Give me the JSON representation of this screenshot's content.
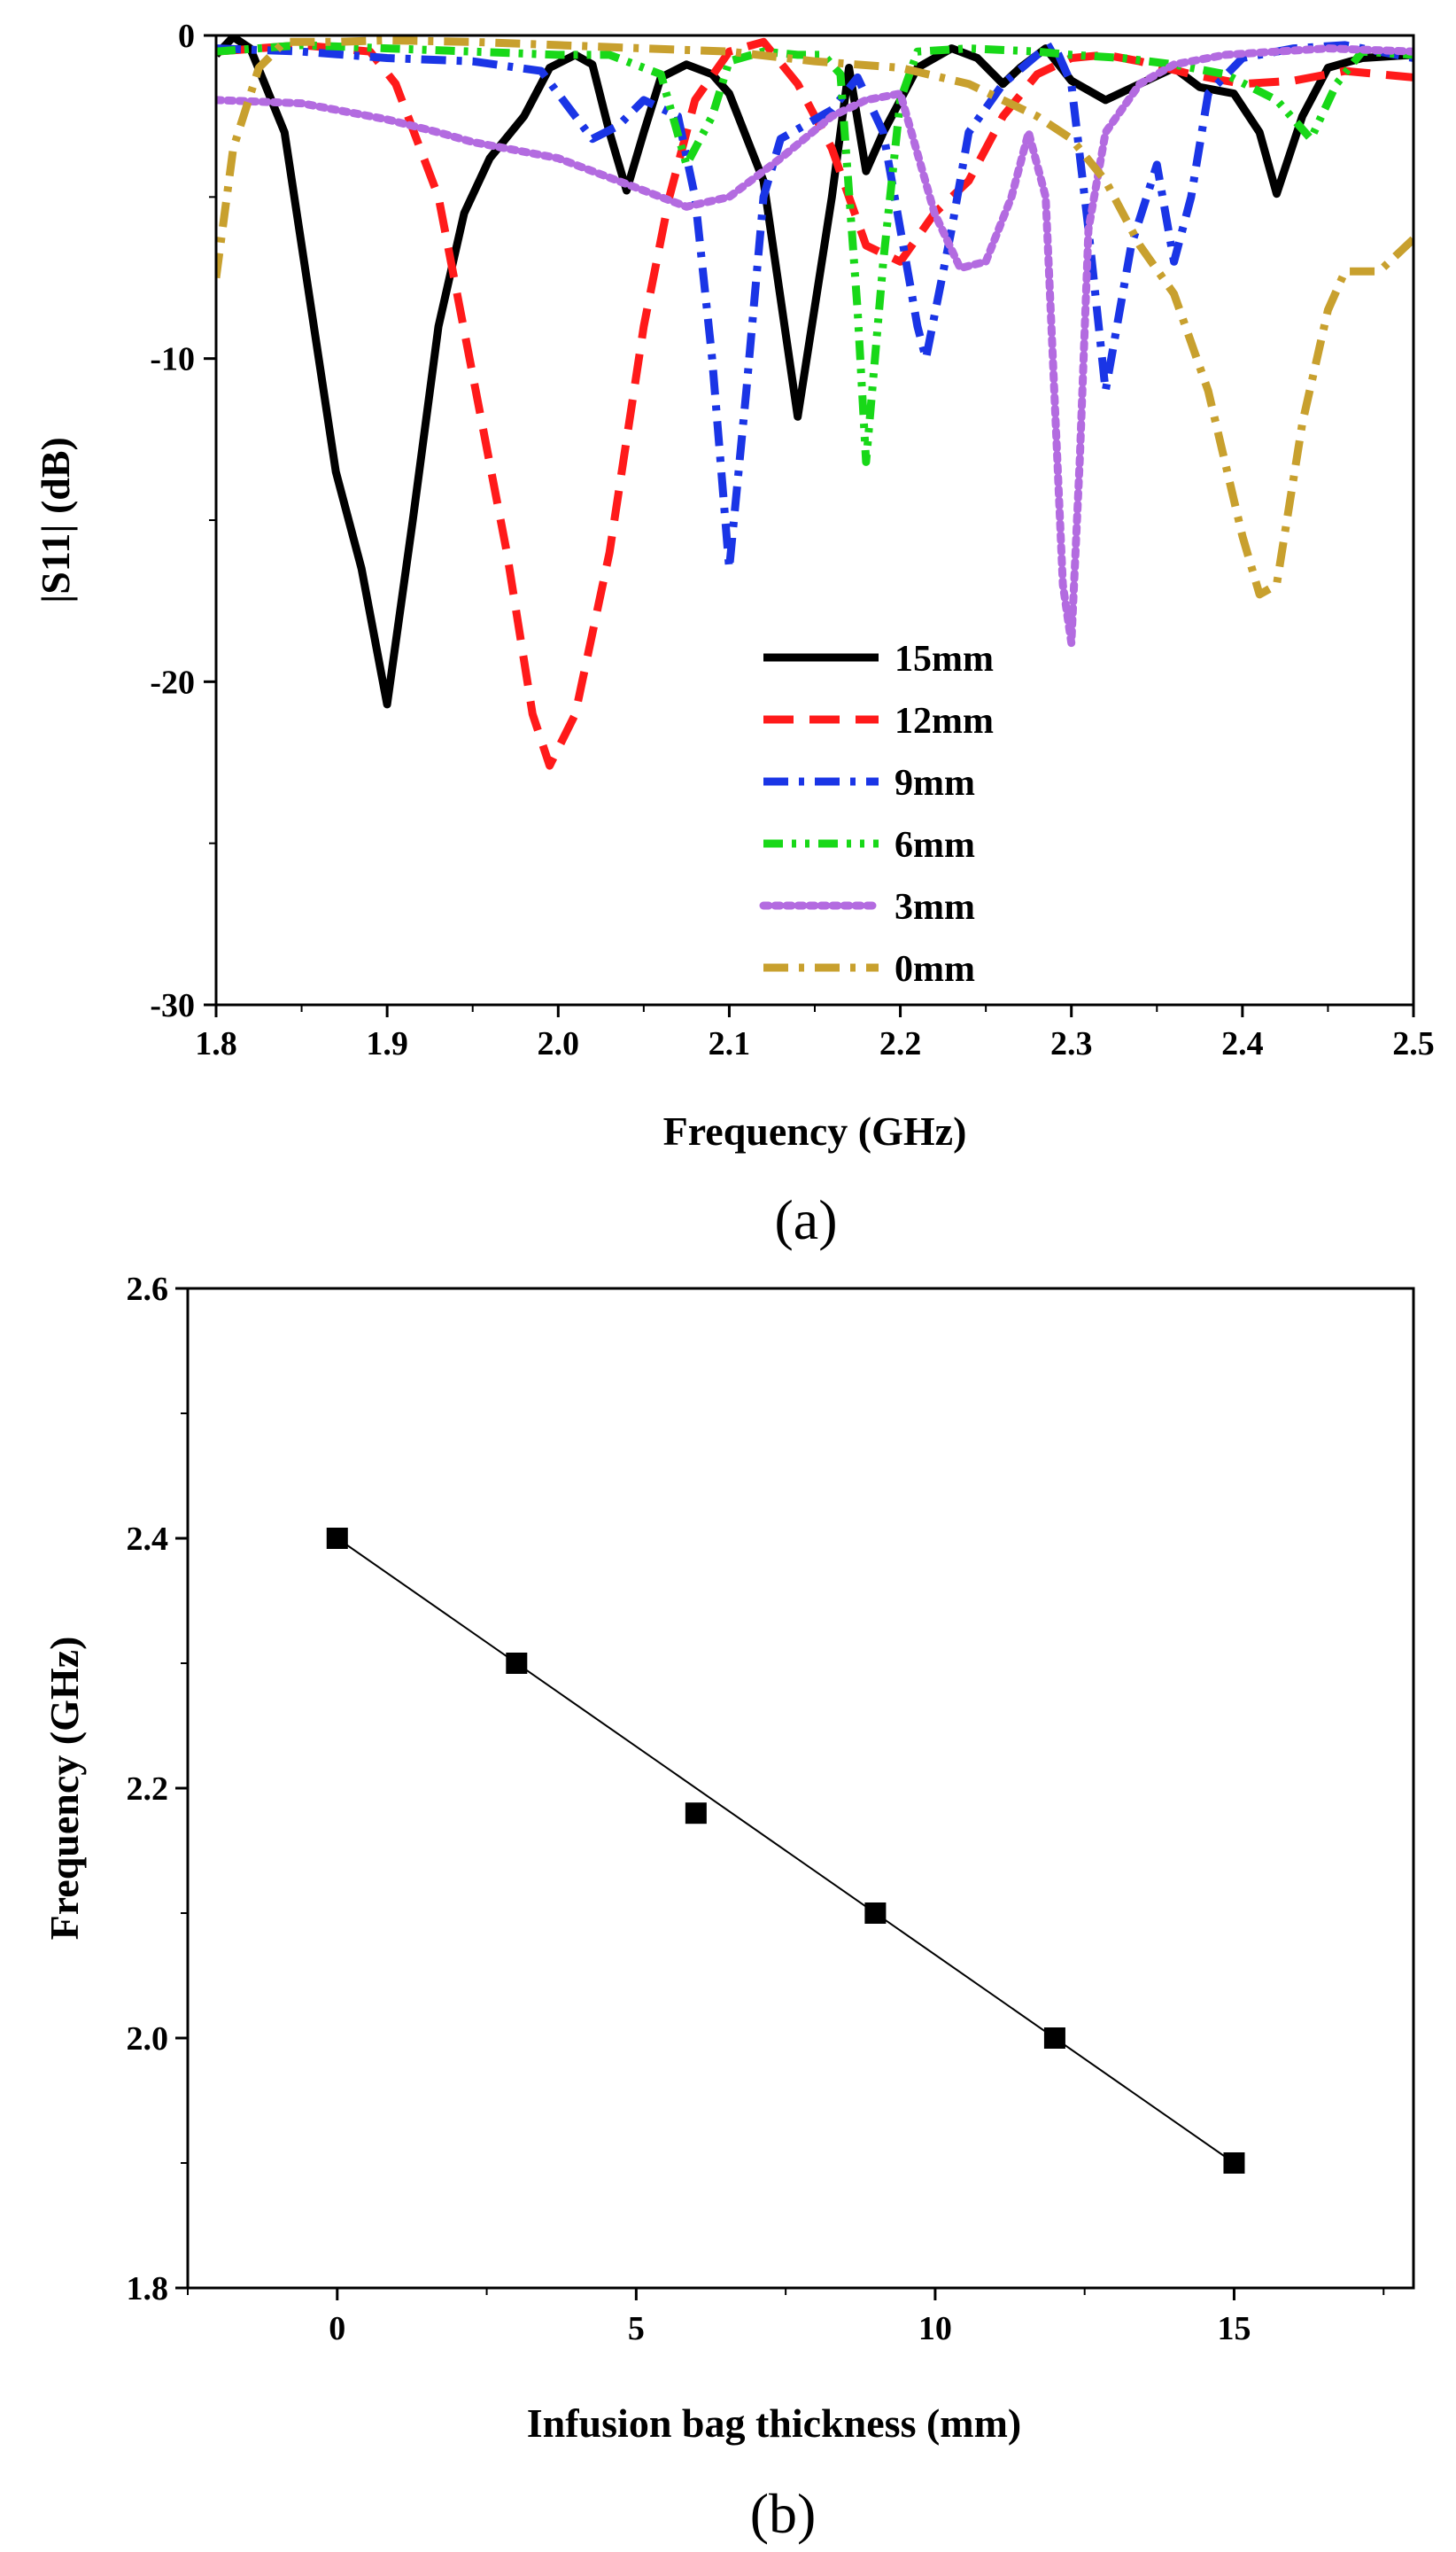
{
  "chart_data": [
    {
      "panel": "(a)",
      "type": "line",
      "xlabel": "Frequency (GHz)",
      "ylabel": "|S11| (dB)",
      "xlim": [
        1.8,
        2.5
      ],
      "ylim": [
        -30,
        0
      ],
      "xticks": [
        1.8,
        1.9,
        2.0,
        2.1,
        2.2,
        2.3,
        2.4,
        2.5
      ],
      "xtick_labels": [
        "1.8",
        "1.9",
        "2.0",
        "2.1",
        "2.2",
        "2.3",
        "2.4",
        "2.5"
      ],
      "yticks": [
        0,
        -10,
        -20,
        -30
      ],
      "ytick_labels": [
        "0",
        "-10",
        "-20",
        "-30"
      ],
      "legend_position": "lower-right",
      "series": [
        {
          "name": "15mm",
          "color": "#000000",
          "style": "solid",
          "points": [
            [
              1.8,
              -0.6
            ],
            [
              1.81,
              -0.05
            ],
            [
              1.82,
              -0.4
            ],
            [
              1.84,
              -3.0
            ],
            [
              1.86,
              -10.0
            ],
            [
              1.87,
              -13.5
            ],
            [
              1.885,
              -16.5
            ],
            [
              1.9,
              -20.7
            ],
            [
              1.915,
              -15.0
            ],
            [
              1.93,
              -9.0
            ],
            [
              1.945,
              -5.5
            ],
            [
              1.96,
              -3.8
            ],
            [
              1.98,
              -2.5
            ],
            [
              1.995,
              -1.0
            ],
            [
              2.01,
              -0.6
            ],
            [
              2.02,
              -0.9
            ],
            [
              2.03,
              -3.0
            ],
            [
              2.04,
              -4.8
            ],
            [
              2.05,
              -3.0
            ],
            [
              2.06,
              -1.3
            ],
            [
              2.075,
              -0.9
            ],
            [
              2.09,
              -1.2
            ],
            [
              2.1,
              -1.8
            ],
            [
              2.12,
              -4.5
            ],
            [
              2.14,
              -11.8
            ],
            [
              2.16,
              -5.0
            ],
            [
              2.17,
              -1.0
            ],
            [
              2.18,
              -4.2
            ],
            [
              2.19,
              -3.0
            ],
            [
              2.21,
              -1.0
            ],
            [
              2.23,
              -0.4
            ],
            [
              2.245,
              -0.7
            ],
            [
              2.26,
              -1.5
            ],
            [
              2.27,
              -1.0
            ],
            [
              2.285,
              -0.4
            ],
            [
              2.3,
              -1.4
            ],
            [
              2.32,
              -2.0
            ],
            [
              2.34,
              -1.5
            ],
            [
              2.36,
              -1.0
            ],
            [
              2.375,
              -1.6
            ],
            [
              2.395,
              -1.8
            ],
            [
              2.41,
              -3.0
            ],
            [
              2.42,
              -4.9
            ],
            [
              2.435,
              -2.5
            ],
            [
              2.45,
              -1.0
            ],
            [
              2.47,
              -0.7
            ],
            [
              2.5,
              -0.6
            ]
          ]
        },
        {
          "name": "12mm",
          "color": "#ff1a1a",
          "style": "dash",
          "points": [
            [
              1.8,
              -0.5
            ],
            [
              1.85,
              -0.3
            ],
            [
              1.89,
              -0.5
            ],
            [
              1.905,
              -1.5
            ],
            [
              1.93,
              -5.0
            ],
            [
              1.95,
              -10.5
            ],
            [
              1.97,
              -16.0
            ],
            [
              1.985,
              -21.0
            ],
            [
              1.995,
              -22.6
            ],
            [
              2.01,
              -21.0
            ],
            [
              2.03,
              -16.0
            ],
            [
              2.05,
              -9.0
            ],
            [
              2.065,
              -5.0
            ],
            [
              2.08,
              -2.0
            ],
            [
              2.1,
              -0.5
            ],
            [
              2.12,
              -0.2
            ],
            [
              2.14,
              -1.5
            ],
            [
              2.16,
              -3.5
            ],
            [
              2.18,
              -6.5
            ],
            [
              2.2,
              -7.0
            ],
            [
              2.22,
              -5.5
            ],
            [
              2.24,
              -4.5
            ],
            [
              2.26,
              -2.5
            ],
            [
              2.28,
              -1.2
            ],
            [
              2.3,
              -0.7
            ],
            [
              2.32,
              -0.6
            ],
            [
              2.34,
              -0.8
            ],
            [
              2.37,
              -1.2
            ],
            [
              2.4,
              -1.5
            ],
            [
              2.43,
              -1.4
            ],
            [
              2.46,
              -1.1
            ],
            [
              2.5,
              -1.3
            ]
          ]
        },
        {
          "name": "9mm",
          "color": "#1a35e6",
          "style": "dashdot",
          "points": [
            [
              1.8,
              -0.4
            ],
            [
              1.85,
              -0.5
            ],
            [
              1.9,
              -0.7
            ],
            [
              1.95,
              -0.8
            ],
            [
              1.99,
              -1.1
            ],
            [
              2.01,
              -2.5
            ],
            [
              2.02,
              -3.2
            ],
            [
              2.035,
              -2.8
            ],
            [
              2.05,
              -2.0
            ],
            [
              2.07,
              -2.5
            ],
            [
              2.08,
              -5.0
            ],
            [
              2.09,
              -10.0
            ],
            [
              2.1,
              -16.5
            ],
            [
              2.11,
              -11.0
            ],
            [
              2.12,
              -5.0
            ],
            [
              2.13,
              -3.2
            ],
            [
              2.16,
              -2.3
            ],
            [
              2.175,
              -1.3
            ],
            [
              2.19,
              -3.0
            ],
            [
              2.2,
              -6.0
            ],
            [
              2.21,
              -9.0
            ],
            [
              2.215,
              -10.0
            ],
            [
              2.23,
              -6.0
            ],
            [
              2.24,
              -3.0
            ],
            [
              2.26,
              -1.5
            ],
            [
              2.28,
              -0.6
            ],
            [
              2.29,
              -0.3
            ],
            [
              2.3,
              -1.5
            ],
            [
              2.31,
              -6.0
            ],
            [
              2.32,
              -11.0
            ],
            [
              2.335,
              -6.5
            ],
            [
              2.35,
              -4.0
            ],
            [
              2.36,
              -7.0
            ],
            [
              2.37,
              -5.0
            ],
            [
              2.38,
              -1.8
            ],
            [
              2.4,
              -0.7
            ],
            [
              2.43,
              -0.4
            ],
            [
              2.46,
              -0.3
            ],
            [
              2.5,
              -0.7
            ]
          ]
        },
        {
          "name": "6mm",
          "color": "#18d818",
          "style": "dashdotdot",
          "points": [
            [
              1.8,
              -0.5
            ],
            [
              1.85,
              -0.3
            ],
            [
              1.9,
              -0.4
            ],
            [
              1.95,
              -0.5
            ],
            [
              2.0,
              -0.6
            ],
            [
              2.03,
              -0.6
            ],
            [
              2.06,
              -1.2
            ],
            [
              2.075,
              -4.0
            ],
            [
              2.09,
              -2.5
            ],
            [
              2.1,
              -0.8
            ],
            [
              2.12,
              -0.5
            ],
            [
              2.14,
              -0.6
            ],
            [
              2.155,
              -0.6
            ],
            [
              2.165,
              -1.2
            ],
            [
              2.175,
              -8.5
            ],
            [
              2.18,
              -13.2
            ],
            [
              2.19,
              -7.0
            ],
            [
              2.2,
              -2.0
            ],
            [
              2.21,
              -0.5
            ],
            [
              2.24,
              -0.4
            ],
            [
              2.28,
              -0.5
            ],
            [
              2.3,
              -0.6
            ],
            [
              2.33,
              -0.7
            ],
            [
              2.36,
              -0.9
            ],
            [
              2.39,
              -1.2
            ],
            [
              2.42,
              -2.0
            ],
            [
              2.44,
              -3.2
            ],
            [
              2.455,
              -1.5
            ],
            [
              2.47,
              -0.5
            ],
            [
              2.5,
              -0.6
            ]
          ]
        },
        {
          "name": "3mm",
          "color": "#b36be0",
          "style": "dot",
          "points": [
            [
              1.8,
              -2.0
            ],
            [
              1.85,
              -2.1
            ],
            [
              1.9,
              -2.6
            ],
            [
              1.93,
              -3.0
            ],
            [
              1.95,
              -3.3
            ],
            [
              2.0,
              -3.8
            ],
            [
              2.05,
              -4.8
            ],
            [
              2.075,
              -5.3
            ],
            [
              2.1,
              -5.0
            ],
            [
              2.13,
              -3.8
            ],
            [
              2.16,
              -2.5
            ],
            [
              2.18,
              -2.0
            ],
            [
              2.2,
              -1.8
            ],
            [
              2.22,
              -5.5
            ],
            [
              2.235,
              -7.2
            ],
            [
              2.25,
              -7.0
            ],
            [
              2.265,
              -5.0
            ],
            [
              2.275,
              -3.0
            ],
            [
              2.285,
              -5.0
            ],
            [
              2.29,
              -11.0
            ],
            [
              2.295,
              -17.0
            ],
            [
              2.3,
              -18.8
            ],
            [
              2.305,
              -13.0
            ],
            [
              2.31,
              -6.0
            ],
            [
              2.32,
              -3.0
            ],
            [
              2.34,
              -1.5
            ],
            [
              2.36,
              -0.9
            ],
            [
              2.39,
              -0.6
            ],
            [
              2.42,
              -0.5
            ],
            [
              2.45,
              -0.4
            ],
            [
              2.5,
              -0.5
            ]
          ]
        },
        {
          "name": "0mm",
          "color": "#c8a02e",
          "style": "dashdot",
          "points": [
            [
              1.8,
              -7.5
            ],
            [
              1.81,
              -3.5
            ],
            [
              1.825,
              -1.0
            ],
            [
              1.84,
              -0.2
            ],
            [
              1.87,
              -0.2
            ],
            [
              1.9,
              -0.15
            ],
            [
              1.95,
              -0.2
            ],
            [
              2.0,
              -0.3
            ],
            [
              2.05,
              -0.4
            ],
            [
              2.1,
              -0.5
            ],
            [
              2.15,
              -0.8
            ],
            [
              2.2,
              -1.0
            ],
            [
              2.24,
              -1.5
            ],
            [
              2.28,
              -2.5
            ],
            [
              2.3,
              -3.2
            ],
            [
              2.32,
              -4.5
            ],
            [
              2.34,
              -6.5
            ],
            [
              2.36,
              -8.0
            ],
            [
              2.38,
              -11.0
            ],
            [
              2.4,
              -15.5
            ],
            [
              2.41,
              -17.3
            ],
            [
              2.42,
              -17.0
            ],
            [
              2.435,
              -12.0
            ],
            [
              2.45,
              -8.5
            ],
            [
              2.46,
              -7.3
            ],
            [
              2.48,
              -7.3
            ],
            [
              2.5,
              -6.3
            ]
          ]
        }
      ]
    },
    {
      "panel": "(b)",
      "type": "scatter",
      "xlabel": "Infusion bag thickness (mm)",
      "ylabel": "Frequency (GHz)",
      "xlim": [
        -2.5,
        18
      ],
      "ylim": [
        1.8,
        2.6
      ],
      "xticks": [
        0,
        5,
        10,
        15
      ],
      "xtick_labels": [
        "0",
        "5",
        "10",
        "15"
      ],
      "yticks": [
        1.8,
        2.0,
        2.2,
        2.4,
        2.6
      ],
      "ytick_labels": [
        "1.8",
        "2.0",
        "2.2",
        "2.4",
        "2.6"
      ],
      "x": [
        0,
        3,
        6,
        9,
        12,
        15
      ],
      "y": [
        2.4,
        2.3,
        2.18,
        2.1,
        2.0,
        1.9
      ],
      "fit_line": {
        "x": [
          0,
          15
        ],
        "y": [
          2.4,
          1.9
        ]
      }
    }
  ]
}
